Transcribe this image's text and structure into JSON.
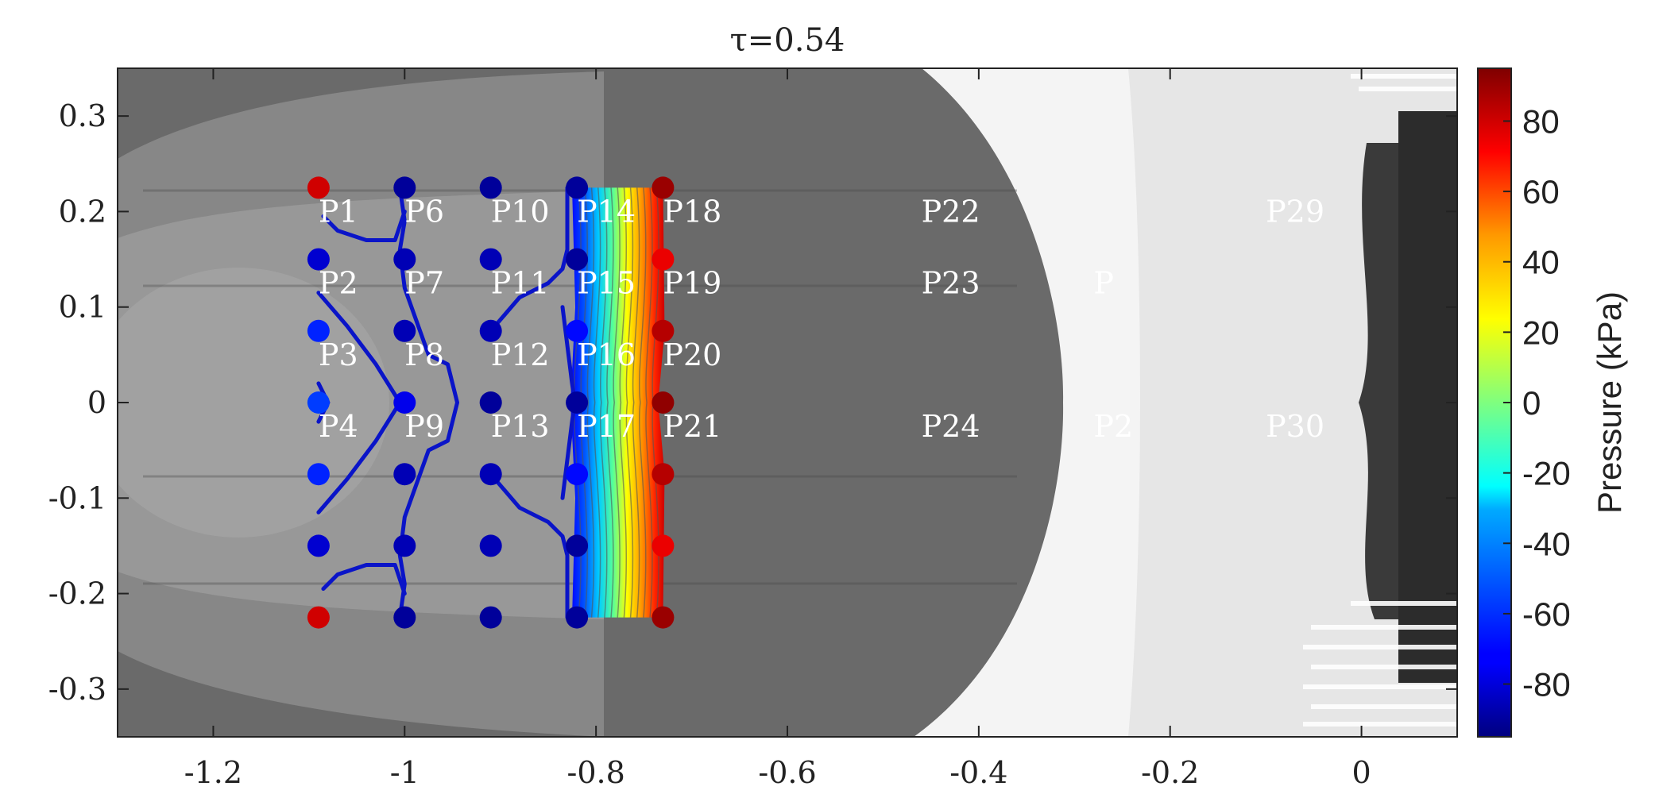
{
  "chart_data": {
    "type": "contour",
    "title": "τ=0.54",
    "xlabel": "",
    "ylabel": "",
    "xlim": [
      -1.3,
      0.1
    ],
    "ylim": [
      0.35,
      -0.35
    ],
    "x_ticks": [
      -1.2,
      -1,
      -0.8,
      -0.6,
      -0.4,
      -0.2,
      0
    ],
    "x_tick_labels": [
      "-1.2",
      "-1",
      "-0.8",
      "-0.6",
      "-0.4",
      "-0.2",
      "0"
    ],
    "y_ticks": [
      -0.3,
      -0.2,
      -0.1,
      0,
      0.1,
      0.2,
      0.3
    ],
    "y_tick_labels": [
      "-0.3",
      "-0.2",
      "-0.1",
      "0",
      "0.1",
      "0.2",
      "0.3"
    ],
    "background": "grayscale schlieren image",
    "colormap": "jet",
    "colorbar": {
      "label": "Pressure (kPa)",
      "range": [
        -95,
        95
      ],
      "ticks": [
        -80,
        -60,
        -40,
        -20,
        0,
        20,
        40,
        60,
        80
      ],
      "tick_labels": [
        "-80",
        "-60",
        "-40",
        "-20",
        "0",
        "20",
        "40",
        "60",
        "80"
      ]
    },
    "probe_labels": [
      {
        "text": "P1",
        "x": -1.09,
        "y": 0.2
      },
      {
        "text": "P2",
        "x": -1.09,
        "y": 0.125
      },
      {
        "text": "P3",
        "x": -1.09,
        "y": 0.05
      },
      {
        "text": "P4",
        "x": -1.09,
        "y": -0.025
      },
      {
        "text": "P6",
        "x": -1.0,
        "y": 0.2
      },
      {
        "text": "P7",
        "x": -1.0,
        "y": 0.125
      },
      {
        "text": "P8",
        "x": -1.0,
        "y": 0.05
      },
      {
        "text": "P9",
        "x": -1.0,
        "y": -0.025
      },
      {
        "text": "P10",
        "x": -0.91,
        "y": 0.2
      },
      {
        "text": "P11",
        "x": -0.91,
        "y": 0.125
      },
      {
        "text": "P12",
        "x": -0.91,
        "y": 0.05
      },
      {
        "text": "P13",
        "x": -0.91,
        "y": -0.025
      },
      {
        "text": "P14",
        "x": -0.82,
        "y": 0.2
      },
      {
        "text": "P15",
        "x": -0.82,
        "y": 0.125
      },
      {
        "text": "P16",
        "x": -0.82,
        "y": 0.05
      },
      {
        "text": "P17",
        "x": -0.82,
        "y": -0.025
      },
      {
        "text": "P18",
        "x": -0.73,
        "y": 0.2
      },
      {
        "text": "P19",
        "x": -0.73,
        "y": 0.125
      },
      {
        "text": "P20",
        "x": -0.73,
        "y": 0.05
      },
      {
        "text": "P21",
        "x": -0.73,
        "y": -0.025
      },
      {
        "text": "P22",
        "x": -0.46,
        "y": 0.2
      },
      {
        "text": "P23",
        "x": -0.46,
        "y": 0.125
      },
      {
        "text": "P24",
        "x": -0.46,
        "y": -0.025
      },
      {
        "text": "P2",
        "x": -0.28,
        "y": -0.025
      },
      {
        "text": "P",
        "x": -0.28,
        "y": 0.125
      },
      {
        "text": "P29",
        "x": -0.1,
        "y": 0.2
      },
      {
        "text": "P30",
        "x": -0.1,
        "y": -0.025
      }
    ],
    "sensor_points": [
      {
        "x": -1.09,
        "y": -0.225,
        "pressure": 80
      },
      {
        "x": -1.09,
        "y": -0.15,
        "pressure": -80
      },
      {
        "x": -1.09,
        "y": -0.075,
        "pressure": -65
      },
      {
        "x": -1.09,
        "y": 0.0,
        "pressure": -60
      },
      {
        "x": -1.09,
        "y": 0.075,
        "pressure": -65
      },
      {
        "x": -1.09,
        "y": 0.15,
        "pressure": -80
      },
      {
        "x": -1.09,
        "y": 0.225,
        "pressure": 80
      },
      {
        "x": -1.0,
        "y": -0.225,
        "pressure": -90
      },
      {
        "x": -1.0,
        "y": -0.15,
        "pressure": -85
      },
      {
        "x": -1.0,
        "y": -0.075,
        "pressure": -85
      },
      {
        "x": -1.0,
        "y": 0.0,
        "pressure": -75
      },
      {
        "x": -1.0,
        "y": 0.075,
        "pressure": -85
      },
      {
        "x": -1.0,
        "y": 0.15,
        "pressure": -85
      },
      {
        "x": -1.0,
        "y": 0.225,
        "pressure": -90
      },
      {
        "x": -0.91,
        "y": -0.225,
        "pressure": -90
      },
      {
        "x": -0.91,
        "y": -0.15,
        "pressure": -85
      },
      {
        "x": -0.91,
        "y": -0.075,
        "pressure": -85
      },
      {
        "x": -0.91,
        "y": 0.0,
        "pressure": -90
      },
      {
        "x": -0.91,
        "y": 0.075,
        "pressure": -85
      },
      {
        "x": -0.91,
        "y": 0.15,
        "pressure": -85
      },
      {
        "x": -0.91,
        "y": 0.225,
        "pressure": -90
      },
      {
        "x": -0.82,
        "y": -0.225,
        "pressure": -90
      },
      {
        "x": -0.82,
        "y": -0.15,
        "pressure": -90
      },
      {
        "x": -0.82,
        "y": -0.075,
        "pressure": -70
      },
      {
        "x": -0.82,
        "y": 0.0,
        "pressure": -90
      },
      {
        "x": -0.82,
        "y": 0.075,
        "pressure": -70
      },
      {
        "x": -0.82,
        "y": 0.15,
        "pressure": -90
      },
      {
        "x": -0.82,
        "y": 0.225,
        "pressure": -90
      },
      {
        "x": -0.73,
        "y": -0.225,
        "pressure": 90
      },
      {
        "x": -0.73,
        "y": -0.15,
        "pressure": 75
      },
      {
        "x": -0.73,
        "y": -0.075,
        "pressure": 85
      },
      {
        "x": -0.73,
        "y": 0.0,
        "pressure": 92
      },
      {
        "x": -0.73,
        "y": 0.075,
        "pressure": 85
      },
      {
        "x": -0.73,
        "y": 0.15,
        "pressure": 75
      },
      {
        "x": -0.73,
        "y": 0.225,
        "pressure": 90
      }
    ],
    "contour_lines": [
      {
        "pressure": -88,
        "points": [
          [
            -1.085,
            -0.195
          ],
          [
            -1.07,
            -0.18
          ],
          [
            -1.04,
            -0.17
          ],
          [
            -1.01,
            -0.17
          ],
          [
            -1.0,
            -0.2
          ]
        ]
      },
      {
        "pressure": -88,
        "points": [
          [
            -1.085,
            0.195
          ],
          [
            -1.07,
            0.18
          ],
          [
            -1.04,
            0.17
          ],
          [
            -1.01,
            0.17
          ],
          [
            -1.0,
            0.2
          ]
        ]
      },
      {
        "pressure": -88,
        "points": [
          [
            -1.005,
            -0.225
          ],
          [
            -1.0,
            -0.19
          ],
          [
            -1.005,
            -0.16
          ],
          [
            -1.0,
            -0.12
          ],
          [
            -0.975,
            -0.05
          ],
          [
            -0.955,
            -0.04
          ],
          [
            -0.945,
            0.0
          ],
          [
            -0.955,
            0.04
          ],
          [
            -0.975,
            0.05
          ],
          [
            -1.0,
            0.12
          ],
          [
            -1.005,
            0.16
          ],
          [
            -1.0,
            0.19
          ],
          [
            -1.005,
            0.225
          ]
        ]
      },
      {
        "pressure": -88,
        "points": [
          [
            -1.09,
            -0.115
          ],
          [
            -1.06,
            -0.08
          ],
          [
            -1.03,
            -0.04
          ],
          [
            -1.005,
            0.0
          ],
          [
            -1.03,
            0.04
          ],
          [
            -1.06,
            0.08
          ],
          [
            -1.09,
            0.115
          ]
        ]
      },
      {
        "pressure": -88,
        "points": [
          [
            -1.09,
            -0.02
          ],
          [
            -1.08,
            0.0
          ],
          [
            -1.09,
            0.02
          ]
        ]
      },
      {
        "pressure": -88,
        "points": [
          [
            -0.91,
            -0.075
          ],
          [
            -0.88,
            -0.11
          ],
          [
            -0.85,
            -0.125
          ],
          [
            -0.835,
            -0.14
          ],
          [
            -0.83,
            -0.16
          ],
          [
            -0.83,
            -0.225
          ]
        ]
      },
      {
        "pressure": -88,
        "points": [
          [
            -0.91,
            0.075
          ],
          [
            -0.88,
            0.11
          ],
          [
            -0.85,
            0.125
          ],
          [
            -0.835,
            0.14
          ],
          [
            -0.83,
            0.16
          ],
          [
            -0.83,
            0.225
          ]
        ]
      },
      {
        "pressure": -88,
        "points": [
          [
            -0.835,
            -0.1
          ],
          [
            -0.83,
            -0.06
          ],
          [
            -0.825,
            -0.02
          ],
          [
            -0.822,
            0.0
          ],
          [
            -0.825,
            0.02
          ],
          [
            -0.83,
            0.06
          ],
          [
            -0.835,
            0.1
          ]
        ]
      }
    ]
  }
}
